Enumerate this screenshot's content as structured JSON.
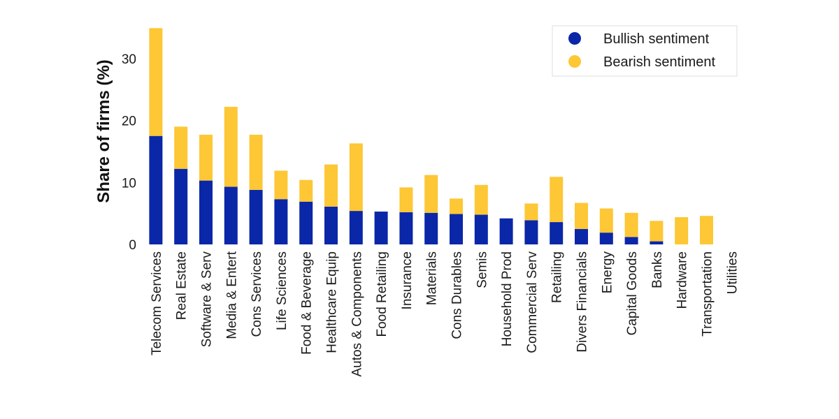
{
  "chart_data": {
    "type": "bar",
    "stacked": true,
    "ylabel": "Share of firms (%)",
    "ylim": [
      0,
      35
    ],
    "yticks": [
      0,
      10,
      20,
      30
    ],
    "grid": false,
    "legend_position": "top-right",
    "categories": [
      "Telecom Services",
      "Real Estate",
      "Software & Serv",
      "Media & Entert",
      "Cons Services",
      "Life Sciences",
      "Food & Beverage",
      "Healthcare Equip",
      "Autos & Components",
      "Food Retailing",
      "Insurance",
      "Materials",
      "Cons Durables",
      "Semis",
      "Household Prod",
      "Commercial Serv",
      "Retailing",
      "Divers Financials",
      "Energy",
      "Capital Goods",
      "Banks",
      "Hardware",
      "Transportation",
      "Utilities"
    ],
    "series": [
      {
        "name": "Bullish sentiment",
        "color": "#0a27a8",
        "values": [
          17.5,
          12.2,
          10.3,
          9.3,
          8.8,
          7.3,
          6.9,
          6.1,
          5.4,
          5.3,
          5.2,
          5.1,
          4.9,
          4.8,
          4.2,
          3.9,
          3.6,
          2.5,
          1.9,
          1.2,
          0.5,
          0,
          0,
          0
        ]
      },
      {
        "name": "Bearish sentiment",
        "color": "#fdc735",
        "values": [
          17.4,
          6.8,
          7.4,
          12.9,
          8.9,
          4.6,
          3.5,
          6.8,
          10.9,
          0,
          4.0,
          6.1,
          2.5,
          4.8,
          0,
          2.7,
          7.3,
          4.2,
          3.9,
          3.9,
          3.3,
          4.4,
          4.6,
          0
        ]
      }
    ]
  }
}
